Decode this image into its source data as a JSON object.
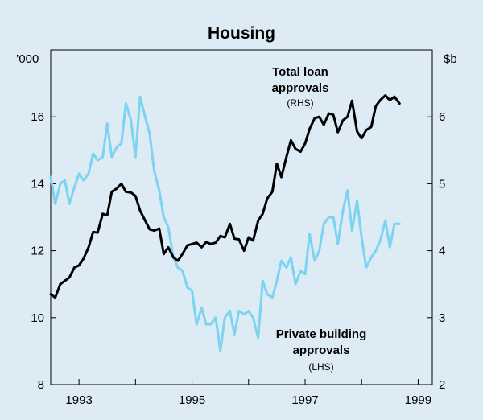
{
  "chart_data": {
    "type": "line",
    "title": "Housing",
    "left_axis": {
      "unit": "’000",
      "range": [
        8,
        18
      ],
      "ticks": [
        8,
        10,
        12,
        14,
        16
      ]
    },
    "right_axis": {
      "unit": "$b",
      "range": [
        2,
        7
      ],
      "ticks": [
        2,
        3,
        4,
        5,
        6
      ]
    },
    "x_axis": {
      "range": [
        1992.5,
        1999.25
      ],
      "ticks": [
        "1993",
        "1995",
        "1997",
        "1999"
      ],
      "tick_values": [
        1993,
        1995,
        1997,
        1999
      ]
    },
    "annotations": {
      "loans": {
        "line1": "Total loan",
        "line2": "approvals",
        "line3": "(RHS)"
      },
      "building": {
        "line1": "Private building",
        "line2": "approvals",
        "line3": "(LHS)"
      }
    },
    "series": [
      {
        "name": "Total loan approvals",
        "axis": "right",
        "color": "#000000",
        "x": [
          1992.5,
          1992.58,
          1992.67,
          1992.75,
          1992.83,
          1992.92,
          1993.0,
          1993.08,
          1993.17,
          1993.25,
          1993.33,
          1993.42,
          1993.5,
          1993.58,
          1993.67,
          1993.75,
          1993.83,
          1993.92,
          1994.0,
          1994.08,
          1994.17,
          1994.25,
          1994.33,
          1994.42,
          1994.5,
          1994.58,
          1994.67,
          1994.75,
          1994.83,
          1994.92,
          1995.0,
          1995.08,
          1995.17,
          1995.25,
          1995.33,
          1995.42,
          1995.5,
          1995.58,
          1995.67,
          1995.75,
          1995.83,
          1995.92,
          1996.0,
          1996.08,
          1996.17,
          1996.25,
          1996.33,
          1996.42,
          1996.5,
          1996.58,
          1996.67,
          1996.75,
          1996.83,
          1996.92,
          1997.0,
          1997.08,
          1997.17,
          1997.25,
          1997.33,
          1997.42,
          1997.5,
          1997.58,
          1997.67,
          1997.75,
          1997.83,
          1997.92,
          1998.0,
          1998.08,
          1998.17,
          1998.25,
          1998.33,
          1998.42,
          1998.5,
          1998.58,
          1998.67
        ],
        "values": [
          3.35,
          3.3,
          3.5,
          3.55,
          3.6,
          3.75,
          3.78,
          3.88,
          4.05,
          4.28,
          4.27,
          4.55,
          4.53,
          4.88,
          4.93,
          5.0,
          4.88,
          4.87,
          4.82,
          4.6,
          4.45,
          4.32,
          4.3,
          4.33,
          3.95,
          4.05,
          3.9,
          3.85,
          3.95,
          4.08,
          4.1,
          4.12,
          4.05,
          4.13,
          4.1,
          4.12,
          4.22,
          4.2,
          4.4,
          4.18,
          4.17,
          4.0,
          4.2,
          4.15,
          4.45,
          4.55,
          4.78,
          4.88,
          5.3,
          5.1,
          5.4,
          5.65,
          5.52,
          5.48,
          5.6,
          5.82,
          5.98,
          6.0,
          5.88,
          6.05,
          6.03,
          5.77,
          5.95,
          6.0,
          6.24,
          5.78,
          5.68,
          5.8,
          5.85,
          6.16,
          6.25,
          6.32,
          6.25,
          6.3,
          6.2
        ]
      },
      {
        "name": "Private building approvals",
        "axis": "left",
        "color": "#7dd3f0",
        "x": [
          1992.5,
          1992.58,
          1992.67,
          1992.75,
          1992.83,
          1992.92,
          1993.0,
          1993.08,
          1993.17,
          1993.25,
          1993.33,
          1993.42,
          1993.5,
          1993.58,
          1993.67,
          1993.75,
          1993.83,
          1993.92,
          1994.0,
          1994.08,
          1994.17,
          1994.25,
          1994.33,
          1994.42,
          1994.5,
          1994.58,
          1994.67,
          1994.75,
          1994.83,
          1994.92,
          1995.0,
          1995.08,
          1995.17,
          1995.25,
          1995.33,
          1995.42,
          1995.5,
          1995.58,
          1995.67,
          1995.75,
          1995.83,
          1995.92,
          1996.0,
          1996.08,
          1996.17,
          1996.25,
          1996.33,
          1996.42,
          1996.5,
          1996.58,
          1996.67,
          1996.75,
          1996.83,
          1996.92,
          1997.0,
          1997.08,
          1997.17,
          1997.25,
          1997.33,
          1997.42,
          1997.5,
          1997.58,
          1997.67,
          1997.75,
          1997.83,
          1997.92,
          1998.0,
          1998.08,
          1998.17,
          1998.25,
          1998.33,
          1998.42,
          1998.5,
          1998.58,
          1998.67
        ],
        "values": [
          14.2,
          13.4,
          14.0,
          14.1,
          13.4,
          13.9,
          14.3,
          14.1,
          14.3,
          14.9,
          14.7,
          14.8,
          15.8,
          14.8,
          15.1,
          15.2,
          16.4,
          15.9,
          14.8,
          16.6,
          16.0,
          15.5,
          14.4,
          13.8,
          13.0,
          12.7,
          11.8,
          11.5,
          11.4,
          10.9,
          10.8,
          9.8,
          10.3,
          9.8,
          9.8,
          10.0,
          9.0,
          10.0,
          10.2,
          9.5,
          10.2,
          10.1,
          10.2,
          10.0,
          9.4,
          11.1,
          10.7,
          10.6,
          11.1,
          11.7,
          11.5,
          11.8,
          11.0,
          11.4,
          11.3,
          12.5,
          11.7,
          12.0,
          12.8,
          13.0,
          13.0,
          12.2,
          13.2,
          13.8,
          12.6,
          13.5,
          12.4,
          11.5,
          11.8,
          12.0,
          12.3,
          12.9,
          12.1,
          12.8,
          12.8
        ]
      }
    ]
  }
}
